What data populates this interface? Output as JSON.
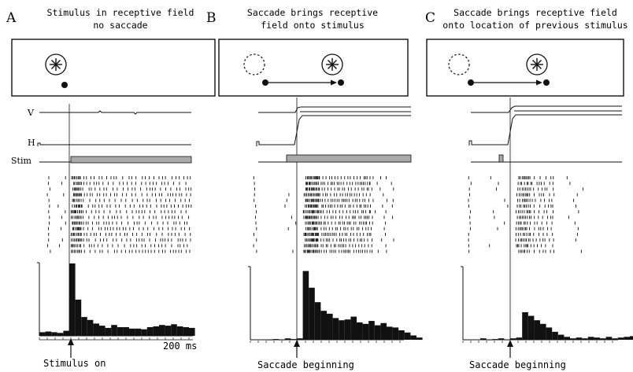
{
  "figure": {
    "scale_label": "200 ms",
    "trace_labels": {
      "v": "V",
      "h": "H",
      "stim": "Stim"
    },
    "panels": [
      {
        "letter": "A",
        "title_lines": [
          "Stimulus in receptive field",
          "no saccade"
        ],
        "event_label": "Stimulus on",
        "condition": "fixation-only"
      },
      {
        "letter": "B",
        "title_lines": [
          "Saccade brings receptive",
          "field onto stimulus"
        ],
        "event_label": "Saccade beginning",
        "condition": "saccade-stimulus-present"
      },
      {
        "letter": "C",
        "title_lines": [
          "Saccade brings receptive field",
          "onto location of previous stimulus"
        ],
        "event_label": "Saccade beginning",
        "condition": "saccade-stimulus-flashed"
      }
    ]
  },
  "chart_data": [
    {
      "type": "bar",
      "title": "",
      "xlabel": "",
      "ylabel": "",
      "description_units": "relative firing rate (0-1) per time bin, aligned to event",
      "x": [
        -0.25,
        -0.2,
        -0.15,
        -0.1,
        -0.05,
        0.0,
        0.05,
        0.1,
        0.15,
        0.2,
        0.25,
        0.3,
        0.35,
        0.4,
        0.45,
        0.5,
        0.55,
        0.6,
        0.65,
        0.7,
        0.75,
        0.8,
        0.85,
        0.9,
        0.95,
        1.0
      ],
      "values": [
        0.05,
        0.06,
        0.05,
        0.04,
        0.07,
        1.0,
        0.5,
        0.26,
        0.22,
        0.17,
        0.14,
        0.11,
        0.15,
        0.12,
        0.12,
        0.1,
        0.1,
        0.09,
        0.12,
        0.13,
        0.15,
        0.14,
        0.16,
        0.13,
        0.12,
        0.11
      ]
    },
    {
      "type": "bar",
      "title": "",
      "xlabel": "",
      "ylabel": "",
      "description_units": "relative firing rate (0-1) per time bin, aligned to event",
      "x": [
        -0.25,
        -0.2,
        -0.15,
        -0.1,
        -0.05,
        0.0,
        0.05,
        0.1,
        0.15,
        0.2,
        0.25,
        0.3,
        0.35,
        0.4,
        0.45,
        0.5,
        0.55,
        0.6,
        0.65,
        0.7,
        0.75,
        0.8,
        0.85,
        0.9,
        0.95,
        1.0
      ],
      "values": [
        0.0,
        0.01,
        0.0,
        0.02,
        0.01,
        0.02,
        0.95,
        0.72,
        0.52,
        0.4,
        0.36,
        0.3,
        0.27,
        0.28,
        0.32,
        0.24,
        0.22,
        0.26,
        0.2,
        0.23,
        0.18,
        0.17,
        0.13,
        0.1,
        0.06,
        0.03
      ]
    },
    {
      "type": "bar",
      "title": "",
      "xlabel": "",
      "ylabel": "",
      "description_units": "relative firing rate (0-1) per time bin, aligned to event",
      "x": [
        -0.25,
        -0.2,
        -0.15,
        -0.1,
        -0.05,
        0.0,
        0.05,
        0.1,
        0.15,
        0.2,
        0.25,
        0.3,
        0.35,
        0.4,
        0.45,
        0.5,
        0.55,
        0.6,
        0.65,
        0.7,
        0.75,
        0.8,
        0.85,
        0.9,
        0.95,
        1.0
      ],
      "values": [
        0.02,
        0.0,
        0.01,
        0.02,
        0.0,
        0.02,
        0.03,
        0.38,
        0.33,
        0.27,
        0.22,
        0.17,
        0.11,
        0.07,
        0.04,
        0.02,
        0.03,
        0.02,
        0.04,
        0.03,
        0.02,
        0.04,
        0.02,
        0.03,
        0.04,
        0.05
      ]
    }
  ]
}
